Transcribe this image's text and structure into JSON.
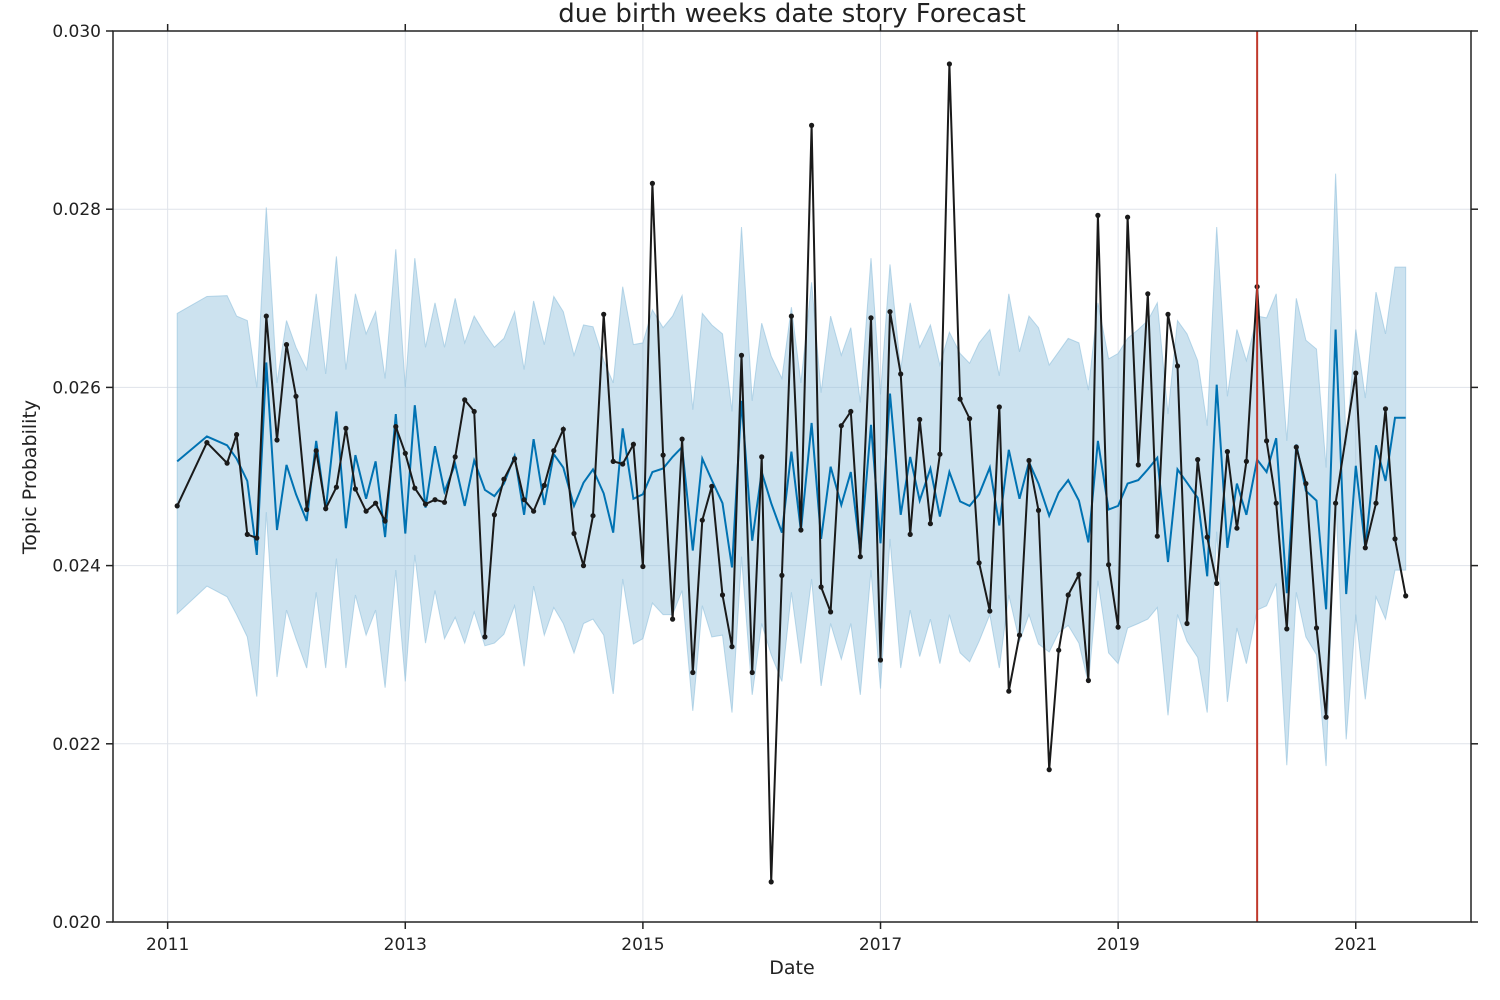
{
  "chart_data": {
    "type": "line",
    "title": "due birth weeks date story Forecast",
    "xlabel": "Date",
    "ylabel": "Topic Probability",
    "xlim": [
      2010.54,
      2021.97
    ],
    "ylim": [
      0.02,
      0.03
    ],
    "x_ticks": [
      2011,
      2013,
      2015,
      2017,
      2019,
      2021
    ],
    "x_tick_labels": [
      "2011",
      "2013",
      "2015",
      "2017",
      "2019",
      "2021"
    ],
    "y_ticks": [
      0.02,
      0.022,
      0.024,
      0.026,
      0.028,
      0.03
    ],
    "y_tick_labels": [
      "0.020",
      "0.022",
      "0.024",
      "0.026",
      "0.028",
      "0.030"
    ],
    "grid": true,
    "changepoint_x": 2020.17,
    "colors": {
      "observed": "#1a1a1a",
      "forecast": "#0072B2",
      "interval": "#8fbfdc",
      "changepoint": "#c0392b",
      "grid": "#dfe3ea"
    },
    "series": [
      {
        "role": "observed",
        "style": "line+markers",
        "x": [
          2011.08,
          2011.33,
          2011.5,
          2011.58,
          2011.67,
          2011.75,
          2011.83,
          2011.92,
          2012.0,
          2012.08,
          2012.17,
          2012.25,
          2012.33,
          2012.42,
          2012.5,
          2012.58,
          2012.67,
          2012.75,
          2012.83,
          2012.92,
          2013.0,
          2013.08,
          2013.17,
          2013.25,
          2013.33,
          2013.42,
          2013.5,
          2013.58,
          2013.67,
          2013.75,
          2013.83,
          2013.92,
          2014.0,
          2014.08,
          2014.17,
          2014.25,
          2014.33,
          2014.42,
          2014.5,
          2014.58,
          2014.67,
          2014.75,
          2014.83,
          2014.92,
          2015.0,
          2015.08,
          2015.17,
          2015.25,
          2015.33,
          2015.42,
          2015.5,
          2015.58,
          2015.67,
          2015.75,
          2015.83,
          2015.92,
          2016.0,
          2016.08,
          2016.17,
          2016.25,
          2016.33,
          2016.42,
          2016.5,
          2016.58,
          2016.67,
          2016.75,
          2016.83,
          2016.92,
          2017.0,
          2017.08,
          2017.17,
          2017.25,
          2017.33,
          2017.42,
          2017.5,
          2017.58,
          2017.67,
          2017.75,
          2017.83,
          2017.92,
          2018.0,
          2018.08,
          2018.17,
          2018.25,
          2018.33,
          2018.42,
          2018.5,
          2018.58,
          2018.67,
          2018.75,
          2018.83,
          2018.92,
          2019.0,
          2019.08,
          2019.17,
          2019.25,
          2019.33,
          2019.42,
          2019.5,
          2019.58,
          2019.67,
          2019.75,
          2019.83,
          2019.92,
          2020.0,
          2020.08,
          2020.17,
          2020.25,
          2020.33,
          2020.42,
          2020.5,
          2020.58,
          2020.67,
          2020.75,
          2020.83,
          2021.0,
          2021.08,
          2021.17,
          2021.25,
          2021.33,
          2021.42
        ],
        "y": [
          0.02467,
          0.02538,
          0.02515,
          0.02547,
          0.02435,
          0.02431,
          0.0268,
          0.02541,
          0.02648,
          0.0259,
          0.02463,
          0.02529,
          0.02464,
          0.02488,
          0.02554,
          0.02486,
          0.02461,
          0.0247,
          0.0245,
          0.02556,
          0.02526,
          0.02487,
          0.02469,
          0.02474,
          0.02471,
          0.02522,
          0.02586,
          0.02573,
          0.0232,
          0.02457,
          0.02497,
          0.0252,
          0.02474,
          0.02461,
          0.0249,
          0.02529,
          0.02553,
          0.02436,
          0.024,
          0.02456,
          0.02682,
          0.02517,
          0.02514,
          0.02536,
          0.02399,
          0.02829,
          0.02524,
          0.0234,
          0.02542,
          0.0228,
          0.02451,
          0.02489,
          0.02367,
          0.02309,
          0.02636,
          0.0228,
          0.02522,
          0.02045,
          0.02389,
          0.0268,
          0.0244,
          0.02894,
          0.02376,
          0.02348,
          0.02557,
          0.02573,
          0.0241,
          0.02678,
          0.02294,
          0.02685,
          0.02615,
          0.02435,
          0.02564,
          0.02447,
          0.02525,
          0.02963,
          0.02587,
          0.02565,
          0.02403,
          0.02349,
          0.02578,
          0.02259,
          0.02322,
          0.02518,
          0.02462,
          0.02171,
          0.02305,
          0.02367,
          0.0239,
          0.02271,
          0.02793,
          0.02401,
          0.02331,
          0.02791,
          0.02513,
          0.02705,
          0.02433,
          0.02682,
          0.02624,
          0.02335,
          0.02519,
          0.02432,
          0.0238,
          0.02528,
          0.02442,
          0.02517,
          0.02713,
          0.0254,
          0.0247,
          0.02329,
          0.02533,
          0.02492,
          0.0233,
          0.0223,
          0.0247,
          0.02616,
          0.0242,
          0.0247,
          0.02576,
          0.0243,
          0.02366
        ]
      },
      {
        "role": "forecast",
        "style": "line",
        "x": [
          2011.08,
          2011.33,
          2011.5,
          2011.58,
          2011.67,
          2011.75,
          2011.83,
          2011.92,
          2012.0,
          2012.08,
          2012.17,
          2012.25,
          2012.33,
          2012.42,
          2012.5,
          2012.58,
          2012.67,
          2012.75,
          2012.83,
          2012.92,
          2013.0,
          2013.08,
          2013.17,
          2013.25,
          2013.33,
          2013.42,
          2013.5,
          2013.58,
          2013.67,
          2013.75,
          2013.83,
          2013.92,
          2014.0,
          2014.08,
          2014.17,
          2014.25,
          2014.33,
          2014.42,
          2014.5,
          2014.58,
          2014.67,
          2014.75,
          2014.83,
          2014.92,
          2015.0,
          2015.08,
          2015.17,
          2015.25,
          2015.33,
          2015.42,
          2015.5,
          2015.58,
          2015.67,
          2015.75,
          2015.83,
          2015.92,
          2016.0,
          2016.08,
          2016.17,
          2016.25,
          2016.33,
          2016.42,
          2016.5,
          2016.58,
          2016.67,
          2016.75,
          2016.83,
          2016.92,
          2017.0,
          2017.08,
          2017.17,
          2017.25,
          2017.33,
          2017.42,
          2017.5,
          2017.58,
          2017.67,
          2017.75,
          2017.83,
          2017.92,
          2018.0,
          2018.08,
          2018.17,
          2018.25,
          2018.33,
          2018.42,
          2018.5,
          2018.58,
          2018.67,
          2018.75,
          2018.83,
          2018.92,
          2019.0,
          2019.08,
          2019.17,
          2019.25,
          2019.33,
          2019.42,
          2019.5,
          2019.58,
          2019.67,
          2019.75,
          2019.83,
          2019.92,
          2020.0,
          2020.08,
          2020.17,
          2020.25,
          2020.33,
          2020.42,
          2020.5,
          2020.58,
          2020.67,
          2020.75,
          2020.83,
          2020.92,
          2021.0,
          2021.08,
          2021.17,
          2021.25,
          2021.33,
          2021.42
        ],
        "y": [
          0.02517,
          0.02545,
          0.02535,
          0.0252,
          0.02495,
          0.02412,
          0.02628,
          0.0244,
          0.02513,
          0.0248,
          0.0245,
          0.0254,
          0.02462,
          0.02573,
          0.02442,
          0.02524,
          0.02475,
          0.02517,
          0.02432,
          0.0257,
          0.02436,
          0.0258,
          0.02465,
          0.02534,
          0.02483,
          0.02514,
          0.02467,
          0.02518,
          0.02485,
          0.02478,
          0.02492,
          0.02523,
          0.02457,
          0.02542,
          0.02468,
          0.02525,
          0.0251,
          0.02467,
          0.02493,
          0.02508,
          0.02481,
          0.02437,
          0.02554,
          0.02475,
          0.0248,
          0.02505,
          0.02509,
          0.02522,
          0.02533,
          0.02417,
          0.0252,
          0.02496,
          0.0247,
          0.02398,
          0.02585,
          0.02428,
          0.02505,
          0.0247,
          0.02437,
          0.02528,
          0.02439,
          0.0256,
          0.0243,
          0.02511,
          0.02468,
          0.02505,
          0.02415,
          0.02558,
          0.02425,
          0.02593,
          0.02457,
          0.02522,
          0.02473,
          0.02509,
          0.02455,
          0.02505,
          0.02472,
          0.02467,
          0.0248,
          0.0251,
          0.02445,
          0.0253,
          0.02475,
          0.02516,
          0.02492,
          0.02456,
          0.02482,
          0.02496,
          0.02473,
          0.02426,
          0.0254,
          0.02463,
          0.02467,
          0.02492,
          0.02496,
          0.02508,
          0.02521,
          0.02404,
          0.02508,
          0.02493,
          0.02476,
          0.02388,
          0.02603,
          0.0242,
          0.02492,
          0.02457,
          0.02519,
          0.02505,
          0.02543,
          0.02369,
          0.02536,
          0.02484,
          0.02473,
          0.02351,
          0.02665,
          0.02368,
          0.02512,
          0.0242,
          0.02535,
          0.02495,
          0.02566,
          0.02566
        ]
      },
      {
        "role": "interval",
        "style": "band",
        "x": [
          2011.08,
          2011.33,
          2011.5,
          2011.58,
          2011.67,
          2011.75,
          2011.83,
          2011.92,
          2012.0,
          2012.08,
          2012.17,
          2012.25,
          2012.33,
          2012.42,
          2012.5,
          2012.58,
          2012.67,
          2012.75,
          2012.83,
          2012.92,
          2013.0,
          2013.08,
          2013.17,
          2013.25,
          2013.33,
          2013.42,
          2013.5,
          2013.58,
          2013.67,
          2013.75,
          2013.83,
          2013.92,
          2014.0,
          2014.08,
          2014.17,
          2014.25,
          2014.33,
          2014.42,
          2014.5,
          2014.58,
          2014.67,
          2014.75,
          2014.83,
          2014.92,
          2015.0,
          2015.08,
          2015.17,
          2015.25,
          2015.33,
          2015.42,
          2015.5,
          2015.58,
          2015.67,
          2015.75,
          2015.83,
          2015.92,
          2016.0,
          2016.08,
          2016.17,
          2016.25,
          2016.33,
          2016.42,
          2016.5,
          2016.58,
          2016.67,
          2016.75,
          2016.83,
          2016.92,
          2017.0,
          2017.08,
          2017.17,
          2017.25,
          2017.33,
          2017.42,
          2017.5,
          2017.58,
          2017.67,
          2017.75,
          2017.83,
          2017.92,
          2018.0,
          2018.08,
          2018.17,
          2018.25,
          2018.33,
          2018.42,
          2018.5,
          2018.58,
          2018.67,
          2018.75,
          2018.83,
          2018.92,
          2019.0,
          2019.08,
          2019.17,
          2019.25,
          2019.33,
          2019.42,
          2019.5,
          2019.58,
          2019.67,
          2019.75,
          2019.83,
          2019.92,
          2020.0,
          2020.08,
          2020.17,
          2020.25,
          2020.33,
          2020.42,
          2020.5,
          2020.58,
          2020.67,
          2020.75,
          2020.83,
          2020.92,
          2021.0,
          2021.08,
          2021.17,
          2021.25,
          2021.33,
          2021.42
        ],
        "upper": [
          0.02683,
          0.02702,
          0.02703,
          0.0268,
          0.02675,
          0.026,
          0.02802,
          0.02605,
          0.02675,
          0.02645,
          0.0262,
          0.02705,
          0.02615,
          0.02747,
          0.0262,
          0.02705,
          0.0266,
          0.02685,
          0.0261,
          0.02755,
          0.026,
          0.02745,
          0.02645,
          0.02695,
          0.02645,
          0.027,
          0.0265,
          0.0268,
          0.0266,
          0.02645,
          0.02655,
          0.02685,
          0.0262,
          0.02697,
          0.02648,
          0.02702,
          0.02685,
          0.02636,
          0.0267,
          0.02668,
          0.0263,
          0.02605,
          0.02713,
          0.02648,
          0.0265,
          0.02687,
          0.02667,
          0.0268,
          0.02703,
          0.02575,
          0.02683,
          0.0267,
          0.0266,
          0.02573,
          0.0278,
          0.02585,
          0.02672,
          0.02635,
          0.0261,
          0.0269,
          0.02605,
          0.02718,
          0.02594,
          0.0268,
          0.02636,
          0.02667,
          0.02583,
          0.02745,
          0.02592,
          0.02738,
          0.0262,
          0.02695,
          0.02645,
          0.0267,
          0.02625,
          0.02662,
          0.02638,
          0.02627,
          0.0265,
          0.02665,
          0.02613,
          0.02705,
          0.0264,
          0.0268,
          0.02667,
          0.02625,
          0.0264,
          0.02655,
          0.0265,
          0.02597,
          0.02695,
          0.02632,
          0.02638,
          0.02655,
          0.02665,
          0.02675,
          0.02695,
          0.0257,
          0.02675,
          0.0266,
          0.0263,
          0.02557,
          0.0278,
          0.0259,
          0.02665,
          0.0263,
          0.0268,
          0.02678,
          0.02705,
          0.0254,
          0.027,
          0.02653,
          0.02643,
          0.0251,
          0.0284,
          0.02535,
          0.02665,
          0.02588,
          0.02707,
          0.0266,
          0.02735,
          0.02735
        ],
        "lower": [
          0.02346,
          0.02377,
          0.02365,
          0.02345,
          0.0232,
          0.02253,
          0.0246,
          0.02275,
          0.0235,
          0.02318,
          0.02285,
          0.0237,
          0.02285,
          0.02408,
          0.02285,
          0.02367,
          0.02322,
          0.0235,
          0.02263,
          0.02395,
          0.0227,
          0.02412,
          0.02313,
          0.02372,
          0.02318,
          0.02342,
          0.02313,
          0.02348,
          0.0231,
          0.02313,
          0.02323,
          0.02355,
          0.02287,
          0.02377,
          0.02322,
          0.02353,
          0.02335,
          0.02302,
          0.02335,
          0.0234,
          0.02322,
          0.02256,
          0.02385,
          0.02312,
          0.02318,
          0.02358,
          0.02345,
          0.02345,
          0.02372,
          0.02237,
          0.02355,
          0.0232,
          0.02322,
          0.02235,
          0.0241,
          0.02255,
          0.02335,
          0.023,
          0.0227,
          0.0237,
          0.0229,
          0.02385,
          0.02265,
          0.02335,
          0.02295,
          0.02335,
          0.02255,
          0.02395,
          0.02262,
          0.0243,
          0.02285,
          0.0235,
          0.02298,
          0.0234,
          0.0229,
          0.02345,
          0.02302,
          0.02292,
          0.02315,
          0.02345,
          0.02285,
          0.02367,
          0.02315,
          0.02345,
          0.02312,
          0.02303,
          0.02325,
          0.02333,
          0.02313,
          0.02268,
          0.02383,
          0.02302,
          0.0229,
          0.0233,
          0.02335,
          0.0234,
          0.02353,
          0.02232,
          0.02345,
          0.02315,
          0.02297,
          0.02235,
          0.02438,
          0.02247,
          0.0233,
          0.0229,
          0.0235,
          0.02355,
          0.0238,
          0.02176,
          0.0237,
          0.0232,
          0.023,
          0.02175,
          0.0248,
          0.02205,
          0.02345,
          0.0225,
          0.02365,
          0.0234,
          0.02395,
          0.02395
        ]
      }
    ]
  }
}
